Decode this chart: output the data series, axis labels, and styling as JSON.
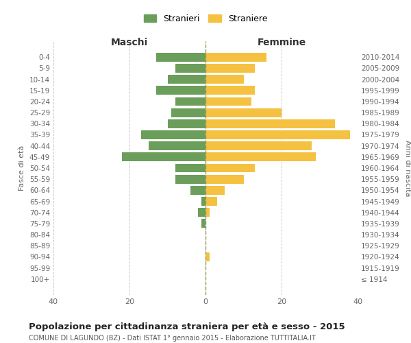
{
  "age_groups": [
    "100+",
    "95-99",
    "90-94",
    "85-89",
    "80-84",
    "75-79",
    "70-74",
    "65-69",
    "60-64",
    "55-59",
    "50-54",
    "45-49",
    "40-44",
    "35-39",
    "30-34",
    "25-29",
    "20-24",
    "15-19",
    "10-14",
    "5-9",
    "0-4"
  ],
  "birth_years": [
    "≤ 1914",
    "1915-1919",
    "1920-1924",
    "1925-1929",
    "1930-1934",
    "1935-1939",
    "1940-1944",
    "1945-1949",
    "1950-1954",
    "1955-1959",
    "1960-1964",
    "1965-1969",
    "1970-1974",
    "1975-1979",
    "1980-1984",
    "1985-1989",
    "1990-1994",
    "1995-1999",
    "2000-2004",
    "2005-2009",
    "2010-2014"
  ],
  "maschi": [
    0,
    0,
    0,
    0,
    0,
    1,
    2,
    1,
    4,
    8,
    8,
    22,
    15,
    17,
    10,
    9,
    8,
    13,
    10,
    8,
    13
  ],
  "femmine": [
    0,
    0,
    1,
    0,
    0,
    0,
    1,
    3,
    5,
    10,
    13,
    29,
    28,
    38,
    34,
    20,
    12,
    13,
    10,
    13,
    16
  ],
  "maschi_color": "#6a9e5a",
  "femmine_color": "#f5c140",
  "background_color": "#ffffff",
  "grid_color": "#cccccc",
  "title": "Popolazione per cittadinanza straniera per età e sesso - 2015",
  "subtitle": "COMUNE DI LAGUNDO (BZ) - Dati ISTAT 1° gennaio 2015 - Elaborazione TUTTITALIA.IT",
  "xlabel_left": "Maschi",
  "xlabel_right": "Femmine",
  "ylabel_left": "Fasce di età",
  "ylabel_right": "Anni di nascita",
  "legend_maschi": "Stranieri",
  "legend_femmine": "Straniere",
  "xlim": 40,
  "bar_height": 0.8
}
